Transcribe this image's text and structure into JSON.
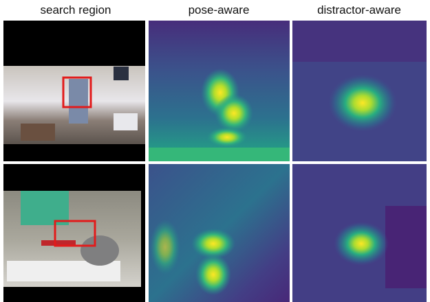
{
  "header": {
    "columns": [
      "search region",
      "pose-aware",
      "distractor-aware"
    ]
  }
}
